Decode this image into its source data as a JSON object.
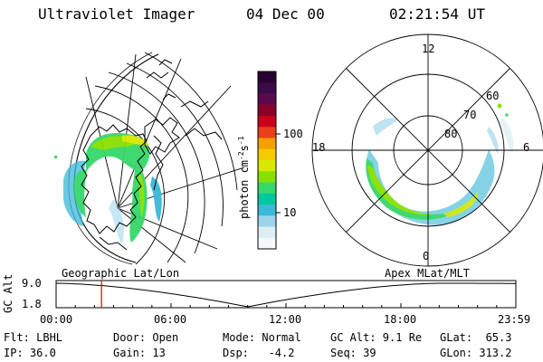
{
  "header": {
    "title": "Ultraviolet Imager",
    "date": "04 Dec 00",
    "time": "02:21:54 UT"
  },
  "colorbar": {
    "label_html": "photon cm",
    "label_main": "photon cm",
    "exp1": "-2",
    "s_char": "s",
    "exp2": "-1",
    "tick_100": "100",
    "tick_10": "10",
    "colors": [
      "#2b0033",
      "#3b0a48",
      "#5a0a4c",
      "#8a0028",
      "#c8001a",
      "#e8401a",
      "#f5a000",
      "#f4cc00",
      "#d8e800",
      "#88e000",
      "#36d86a",
      "#00c8a0",
      "#3cb8d8",
      "#9cd4ec",
      "#dceef4",
      "#f4f8f8"
    ]
  },
  "left_map": {
    "caption": "Geographic Lat/Lon"
  },
  "right_map": {
    "caption": "Apex MLat/MLT",
    "label_12": "12",
    "label_18": "18",
    "label_6": "6",
    "label_0": "0",
    "label_60": "60",
    "label_70": "70",
    "label_80": "80"
  },
  "alt_plot": {
    "ylabel": "GC Alt",
    "ytop": "9.0",
    "ybot": "1.8",
    "ticks": [
      "00:00",
      "06:00",
      "12:00",
      "18:00",
      "23:59"
    ],
    "marker_hour": 2.37
  },
  "footer": {
    "flt": "Flt: LBHL",
    "ip": "IP: 36.0",
    "door": "Door: Open",
    "gain": "Gain: 13",
    "mode": "Mode: Normal",
    "dsp": "Dsp:   -4.2",
    "gcalt": "GC Alt: 9.1 Re",
    "seq": "Seq: 39",
    "glat": "GLat:  65.3",
    "glon": "GLon: 313.2"
  }
}
